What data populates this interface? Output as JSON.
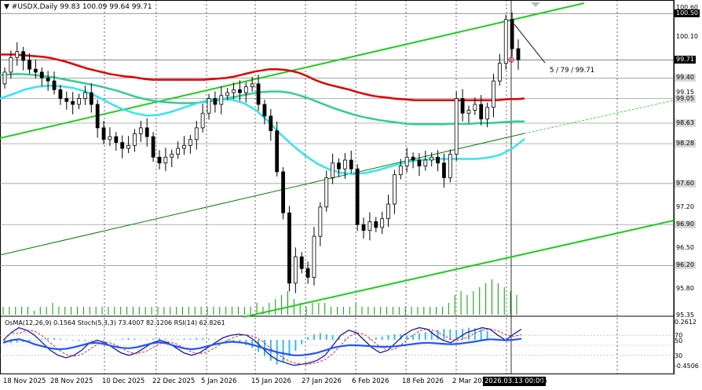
{
  "header": {
    "arrow": "▼",
    "symbol": "#USDX,Daily",
    "ohlc": "99.83 100.09 99.64 99.71"
  },
  "indicator_header": "OsMA(12,26,9) 0.1564  Stoch(5,3,3) 73.4007 82.1206  RSI(14) 62.8261",
  "annotation": "5 / 79 / 99.71",
  "colors": {
    "background": "#ffffff",
    "bull_candle": "#ffffff",
    "bear_candle": "#000000",
    "ema_red": "#e00000",
    "ema_teal": "#33cc99",
    "ema_cyan": "#33e5f2",
    "channel_green": "#22cc22",
    "channel_dark": "#008000",
    "volume": "#00a000",
    "osma": "#33bbee",
    "stoch_main": "#1a1aa6",
    "stoch_signal": "#cc3333",
    "rsi": "#2255ff"
  },
  "price_labels": [
    {
      "text": "100.60",
      "style": ""
    },
    {
      "text": "100.50",
      "style": "hi"
    },
    {
      "text": "100.10",
      "style": ""
    },
    {
      "text": "99.71",
      "style": "hi"
    },
    {
      "text": "99.40",
      "style": "tag"
    },
    {
      "text": "99.15",
      "style": ""
    },
    {
      "text": "99.05",
      "style": "tag"
    },
    {
      "text": "98.63",
      "style": "tag"
    },
    {
      "text": "98.28",
      "style": "tag"
    },
    {
      "text": "97.60",
      "style": "tag"
    },
    {
      "text": "97.20",
      "style": ""
    },
    {
      "text": "96.90",
      "style": "tag"
    },
    {
      "text": "96.50",
      "style": ""
    },
    {
      "text": "96.20",
      "style": "tag"
    },
    {
      "text": "95.80",
      "style": ""
    },
    {
      "text": "95.35",
      "style": ""
    }
  ],
  "indicator_labels": [
    "0.2612",
    "70",
    "50",
    "30",
    "-0.4506"
  ],
  "date_labels": [
    {
      "text": "18 Nov 2025",
      "hi": false
    },
    {
      "text": "28 Nov 2025",
      "hi": false
    },
    {
      "text": "10 Dec 2025",
      "hi": false
    },
    {
      "text": "22 Dec 2025",
      "hi": false
    },
    {
      "text": "5 Jan 2026",
      "hi": false
    },
    {
      "text": "15 Jan 2026",
      "hi": false
    },
    {
      "text": "27 Jan 2026",
      "hi": false
    },
    {
      "text": "6 Feb 2026",
      "hi": false
    },
    {
      "text": "18 Feb 2026",
      "hi": false
    },
    {
      "text": "2 Mar 2026",
      "hi": false
    },
    {
      "text": "2026.03.13 00:00",
      "hi": true
    },
    {
      "text": "26",
      "hi": false
    }
  ],
  "chart_data": {
    "type": "candlestick",
    "symbol": "#USDX",
    "timeframe": "Daily",
    "y_range": [
      95.35,
      100.65
    ],
    "closes": [
      99.5,
      99.75,
      99.85,
      99.7,
      99.55,
      99.5,
      99.4,
      99.35,
      99.2,
      99.05,
      99.0,
      98.95,
      99.05,
      99.15,
      98.95,
      98.55,
      98.35,
      98.4,
      98.3,
      98.2,
      98.25,
      98.45,
      98.55,
      98.4,
      98.05,
      97.95,
      98.05,
      98.1,
      98.2,
      98.25,
      98.35,
      98.55,
      98.8,
      99.05,
      98.95,
      99.1,
      99.15,
      99.2,
      99.15,
      99.25,
      99.3,
      98.95,
      98.75,
      98.5,
      97.8,
      97.1,
      95.9,
      96.35,
      96.15,
      96.0,
      96.7,
      97.2,
      97.7,
      97.95,
      97.85,
      98.0,
      97.85,
      96.9,
      96.8,
      96.95,
      96.85,
      97.0,
      97.25,
      97.75,
      97.9,
      98.05,
      98.0,
      97.9,
      98.0,
      98.05,
      97.95,
      97.7,
      98.1,
      99.05,
      98.8,
      98.85,
      98.95,
      98.7,
      98.9,
      99.35,
      99.65,
      100.4,
      99.9,
      99.71
    ],
    "series": [
      {
        "name": "EMA red",
        "values": [
          99.8,
          99.8,
          99.8,
          99.79,
          99.78,
          99.77,
          99.76,
          99.74,
          99.71,
          99.68,
          99.64,
          99.6,
          99.56,
          99.53,
          99.5,
          99.47,
          99.45,
          99.43,
          99.42,
          99.4,
          99.38,
          99.37,
          99.37,
          99.37,
          99.37,
          99.37,
          99.37,
          99.37,
          99.37,
          99.38,
          99.39,
          99.4,
          99.42,
          99.45,
          99.48,
          99.51,
          99.53,
          99.55,
          99.55,
          99.54,
          99.52,
          99.49,
          99.44,
          99.38,
          99.33,
          99.29,
          99.26,
          99.23,
          99.2,
          99.16,
          99.13,
          99.1,
          99.08,
          99.07,
          99.05,
          99.04,
          99.03,
          99.02,
          99.02,
          99.02,
          99.02,
          99.02,
          99.02,
          99.02,
          99.02,
          99.02,
          99.02,
          99.02,
          99.02,
          99.03,
          99.04,
          99.04,
          99.05
        ]
      },
      {
        "name": "EMA teal",
        "values": [
          99.45,
          99.46,
          99.47,
          99.46,
          99.45,
          99.43,
          99.41,
          99.38,
          99.35,
          99.32,
          99.29,
          99.26,
          99.22,
          99.18,
          99.13,
          99.08,
          99.04,
          99.01,
          98.99,
          98.98,
          98.97,
          98.97,
          98.98,
          99.0,
          99.02,
          99.05,
          99.08,
          99.11,
          99.14,
          99.16,
          99.17,
          99.17,
          99.15,
          99.11,
          99.06,
          99.0,
          98.94,
          98.88,
          98.83,
          98.78,
          98.74,
          98.71,
          98.68,
          98.66,
          98.64,
          98.62,
          98.61,
          98.61,
          98.61,
          98.61,
          98.62,
          98.62,
          98.62,
          98.63,
          98.63,
          98.64,
          98.65,
          98.66,
          98.66
        ]
      },
      {
        "name": "EMA cyan",
        "values": [
          99.05,
          99.12,
          99.2,
          99.25,
          99.27,
          99.26,
          99.23,
          99.17,
          99.08,
          98.97,
          98.87,
          98.8,
          98.76,
          98.77,
          98.82,
          98.89,
          98.96,
          99.02,
          99.04,
          99.03,
          98.97,
          98.85,
          98.66,
          98.44,
          98.25,
          98.08,
          97.94,
          97.84,
          97.78,
          97.76,
          97.78,
          97.83,
          97.89,
          97.95,
          97.99,
          98.01,
          98.02,
          98.02,
          98.02,
          98.02,
          98.04,
          98.09,
          98.2,
          98.36
        ]
      },
      {
        "name": "Volume",
        "values": [
          2,
          2,
          2,
          2,
          2,
          1,
          2,
          2,
          3,
          2,
          2,
          2,
          2,
          2,
          2,
          2,
          2,
          2,
          2,
          2,
          2,
          2,
          2,
          2,
          2,
          2,
          2,
          2,
          2,
          2,
          2,
          2,
          2,
          2,
          2,
          2,
          2,
          2,
          2,
          2,
          2,
          3,
          2,
          3,
          4,
          5,
          6,
          4,
          3,
          2,
          3,
          3,
          3,
          2,
          2,
          2,
          2,
          3,
          2,
          2,
          2,
          2,
          2,
          2,
          2,
          2,
          2,
          2,
          2,
          2,
          2,
          2,
          3,
          5,
          6,
          5,
          6,
          7,
          8,
          9,
          8,
          7,
          6,
          5
        ]
      },
      {
        "name": "OsMA",
        "values": [
          -0.05,
          -0.06,
          -0.05,
          -0.04,
          -0.03,
          -0.01,
          0.02,
          0.03,
          0.03,
          0.02,
          0.01,
          -0.01,
          -0.02,
          -0.02,
          -0.01,
          -0.01,
          -0.02,
          -0.01,
          0.01,
          0.02,
          0.03,
          0.02,
          0.01,
          0.01,
          0.02,
          0.03,
          0.02,
          0.01,
          0.01,
          0.02,
          0.02,
          0.03,
          0.03,
          0.02,
          0.01,
          0.0,
          -0.02,
          -0.04,
          -0.06,
          -0.1,
          -0.15,
          -0.22,
          -0.3,
          -0.38,
          -0.45,
          -0.4,
          -0.3,
          -0.2,
          -0.08,
          0.05,
          0.1,
          0.12,
          0.1,
          0.08,
          0.06,
          0.02,
          0.0,
          -0.02,
          -0.01,
          0.02,
          0.04,
          0.06,
          0.08,
          0.1,
          0.1,
          0.08,
          0.09,
          0.12,
          0.14,
          0.16,
          0.18,
          0.2,
          0.19,
          0.17,
          0.2,
          0.22,
          0.21,
          0.19,
          0.16
        ]
      },
      {
        "name": "Stoch",
        "values": [
          60,
          75,
          85,
          80,
          70,
          55,
          40,
          30,
          25,
          30,
          40,
          55,
          60,
          55,
          45,
          35,
          30,
          35,
          45,
          55,
          60,
          55,
          45,
          35,
          30,
          35,
          45,
          55,
          65,
          70,
          72,
          70,
          60,
          45,
          30,
          20,
          15,
          10,
          12,
          15,
          20,
          30,
          50,
          70,
          80,
          75,
          60,
          45,
          35,
          40,
          55,
          70,
          80,
          85,
          82,
          70,
          60,
          55,
          65,
          75,
          80,
          85,
          82,
          70,
          60,
          72,
          82
        ]
      },
      {
        "name": "RSI",
        "values": [
          55,
          60,
          62,
          58,
          52,
          48,
          44,
          42,
          43,
          46,
          50,
          54,
          55,
          52,
          48,
          45,
          44,
          46,
          50,
          54,
          56,
          53,
          48,
          44,
          42,
          44,
          48,
          52,
          55,
          57,
          56,
          54,
          50,
          45,
          40,
          36,
          33,
          30,
          30,
          32,
          35,
          40,
          45,
          48,
          50,
          50,
          49,
          48,
          47,
          47,
          48,
          50,
          52,
          54,
          55,
          54,
          53,
          52,
          53,
          55,
          57,
          60,
          62,
          61,
          60,
          61,
          63
        ]
      }
    ]
  }
}
